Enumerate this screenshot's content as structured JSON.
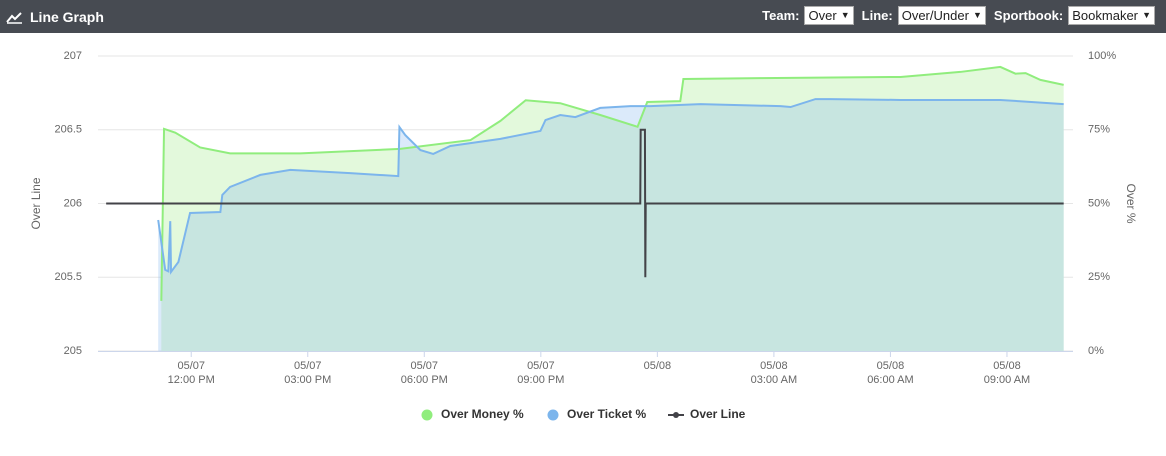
{
  "header": {
    "title": "Line Graph",
    "filters": [
      {
        "label": "Team:",
        "value": "Over"
      },
      {
        "label": "Line:",
        "value": "Over/Under"
      },
      {
        "label": "Sportbook:",
        "value": "Bookmaker"
      }
    ]
  },
  "chart_data": {
    "type": "line",
    "y_label": "Over Line",
    "y2_label": "Over %",
    "xlim": [
      9.6,
      34.7
    ],
    "xticks": [
      {
        "value": 12,
        "label": "05/07",
        "time": "12:00 PM"
      },
      {
        "value": 15,
        "label": "05/07",
        "time": "03:00 PM"
      },
      {
        "value": 18,
        "label": "05/07",
        "time": "06:00 PM"
      },
      {
        "value": 21,
        "label": "05/07",
        "time": "09:00 PM"
      },
      {
        "value": 24,
        "label": "05/08"
      },
      {
        "value": 27,
        "label": "05/08",
        "time": "03:00 AM"
      },
      {
        "value": 30,
        "label": "05/08",
        "time": "06:00 AM"
      },
      {
        "value": 33,
        "label": "05/08",
        "time": "09:00 AM"
      }
    ],
    "ylim": [
      205,
      207
    ],
    "yticks": [
      205,
      205.5,
      206,
      206.5,
      207
    ],
    "y2lim": [
      0,
      100
    ],
    "y2ticks": [
      {
        "value": 0,
        "label": "0%"
      },
      {
        "value": 25,
        "label": "25%"
      },
      {
        "value": 50,
        "label": "50%"
      },
      {
        "value": 75,
        "label": "75%"
      },
      {
        "value": 100,
        "label": "100%"
      }
    ],
    "grid": true,
    "series": [
      {
        "name": "Over Money %",
        "color": "#90ed7d",
        "fill": "#e3f9dc",
        "axis": "y2",
        "area": true,
        "x": [
          11.23,
          11.3,
          11.59,
          12.23,
          13.0,
          14.81,
          17.38,
          19.19,
          19.96,
          20.61,
          21.5,
          22.53,
          23.49,
          23.74,
          24.59,
          24.67,
          26.65,
          30.26,
          31.8,
          32.83,
          33.22,
          33.48,
          33.86,
          34.46
        ],
        "values": [
          17,
          75.3,
          74,
          69,
          67,
          67,
          68.5,
          71.5,
          78,
          85,
          84,
          80,
          76,
          84.4,
          84.7,
          92.2,
          92.5,
          92.9,
          94.6,
          96.3,
          94,
          94.2,
          91.9,
          90.2
        ]
      },
      {
        "name": "Over Ticket %",
        "color": "#7cb5ec",
        "fill": "rgba(124,181,236,0.28)",
        "axis": "y2",
        "area": true,
        "x": [
          11.15,
          11.33,
          11.41,
          11.46,
          11.48,
          11.67,
          11.97,
          12.75,
          12.8,
          13.0,
          13.78,
          14.55,
          16.09,
          17.33,
          17.36,
          17.51,
          17.9,
          18.23,
          18.67,
          19.96,
          20.99,
          21.12,
          21.5,
          21.89,
          22.53,
          23.31,
          23.82,
          25.11,
          27.17,
          27.43,
          28.07,
          28.46,
          30.26,
          32.83,
          34.46
        ],
        "values": [
          44.4,
          27.5,
          27,
          44,
          26.8,
          30.2,
          46.8,
          47.1,
          52.9,
          55.6,
          59.7,
          61.4,
          60.3,
          59.3,
          75.9,
          73.2,
          68.1,
          66.8,
          69.5,
          71.9,
          74.6,
          78.3,
          80,
          79.3,
          82.4,
          83,
          83,
          83.7,
          83,
          82.7,
          85.4,
          85.4,
          85.1,
          85.1,
          83.7
        ]
      },
      {
        "name": "Over Line",
        "color": "#434348",
        "axis": "y",
        "area": false,
        "x": [
          9.81,
          23.56,
          23.57,
          23.68,
          23.69,
          23.7,
          34.46
        ],
        "values": [
          206,
          206,
          206.5,
          206.5,
          205.5,
          206,
          206
        ]
      }
    ]
  }
}
